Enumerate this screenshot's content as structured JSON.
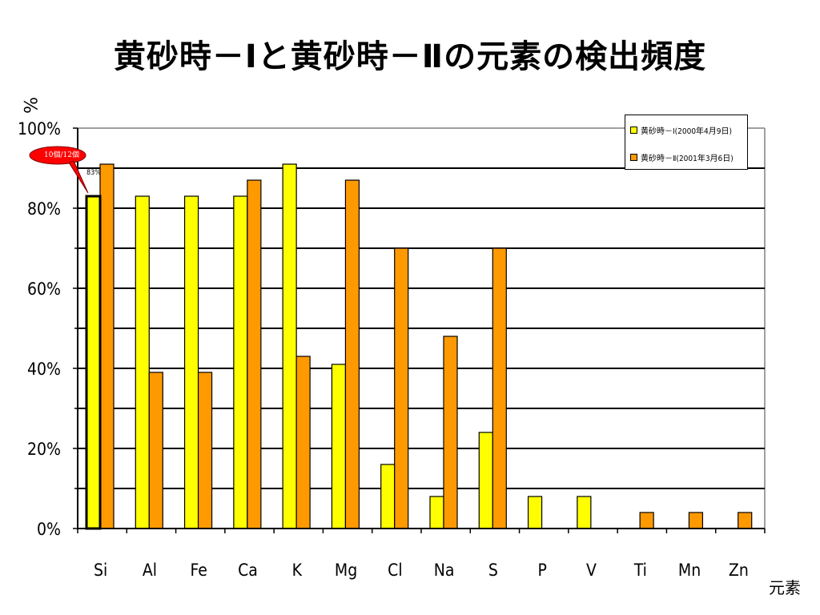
{
  "title": "黄砂時－Ⅰと黄砂時－Ⅱの元素の検出頻度",
  "y_unit": "%",
  "x_unit": "元素",
  "callout": {
    "text": "10個/12個",
    "data_label": "83%"
  },
  "colors": {
    "series1": "#ffff00",
    "series2": "#ff9900",
    "callout": "#ff0000",
    "axis": "#000000"
  },
  "chart_data": {
    "type": "bar",
    "title": "黄砂時－Ⅰと黄砂時－Ⅱの元素の検出頻度",
    "xlabel": "元素",
    "ylabel": "%",
    "ylim": [
      0,
      100
    ],
    "yticks": [
      "0%",
      "20%",
      "40%",
      "60%",
      "80%",
      "100%"
    ],
    "grid": true,
    "legend": "top-right",
    "categories": [
      "Si",
      "Al",
      "Fe",
      "Ca",
      "K",
      "Mg",
      "Cl",
      "Na",
      "S",
      "P",
      "V",
      "Ti",
      "Mn",
      "Zn"
    ],
    "series": [
      {
        "name": "黄砂時－Ⅰ(2000年4月9日)",
        "values": [
          83,
          83,
          83,
          83,
          91,
          41,
          16,
          8,
          24,
          8,
          8,
          0,
          0,
          0
        ]
      },
      {
        "name": "黄砂時－Ⅱ(2001年3月6日)",
        "values": [
          91,
          39,
          39,
          87,
          43,
          87,
          70,
          48,
          70,
          0,
          0,
          4,
          4,
          4
        ]
      }
    ]
  }
}
